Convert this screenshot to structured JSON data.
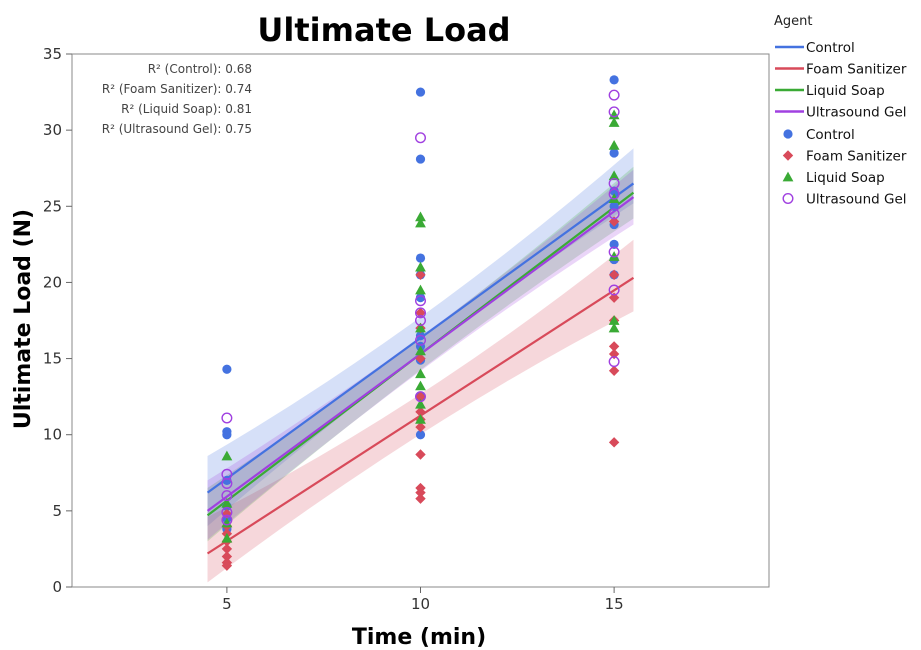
{
  "chart_data": {
    "type": "scatter",
    "title": "Ultimate Load",
    "xlabel": "Time (min)",
    "ylabel": "Ultimate Load (N)",
    "xlim": [
      1,
      19
    ],
    "ylim": [
      0,
      35
    ],
    "x_ticks": [
      5,
      10,
      15
    ],
    "y_ticks": [
      0,
      5,
      10,
      15,
      20,
      25,
      30,
      35
    ],
    "grid": false,
    "legend": {
      "title": "Agent",
      "placement": "right",
      "line_entries": [
        "Control",
        "Foam Sanitizer",
        "Liquid Soap",
        "Ultrasound Gel"
      ],
      "marker_entries": [
        "Control",
        "Foam Sanitizer",
        "Liquid Soap",
        "Ultrasound Gel"
      ]
    },
    "annotations": [
      {
        "label": "R² (Control):",
        "value": "0.68"
      },
      {
        "label": "R² (Foam Sanitizer):",
        "value": "0.74"
      },
      {
        "label": "R² (Liquid Soap):",
        "value": "0.81"
      },
      {
        "label": "R² (Ultrasound Gel):",
        "value": "0.75"
      }
    ],
    "series": [
      {
        "name": "Control",
        "color": "#4472e0",
        "marker": "circle",
        "fit": {
          "x": [
            4.5,
            15.5
          ],
          "y": [
            6.2,
            26.5
          ]
        },
        "band": {
          "lower": [
            4.0,
            25.2
          ],
          "upper": [
            8.6,
            28.8
          ]
        },
        "points": [
          {
            "x": 5,
            "y": 14.3
          },
          {
            "x": 5,
            "y": 10.2
          },
          {
            "x": 5,
            "y": 10.0
          },
          {
            "x": 5,
            "y": 7.0
          },
          {
            "x": 5,
            "y": 5.3
          },
          {
            "x": 5,
            "y": 4.5
          },
          {
            "x": 5,
            "y": 3.8
          },
          {
            "x": 10,
            "y": 32.5
          },
          {
            "x": 10,
            "y": 28.1
          },
          {
            "x": 10,
            "y": 21.6
          },
          {
            "x": 10,
            "y": 20.5
          },
          {
            "x": 10,
            "y": 19.0
          },
          {
            "x": 10,
            "y": 16.5
          },
          {
            "x": 10,
            "y": 15.8
          },
          {
            "x": 10,
            "y": 14.9
          },
          {
            "x": 10,
            "y": 10.0
          },
          {
            "x": 10,
            "y": 12.5
          },
          {
            "x": 15,
            "y": 33.3
          },
          {
            "x": 15,
            "y": 28.5
          },
          {
            "x": 15,
            "y": 26.0
          },
          {
            "x": 15,
            "y": 25.0
          },
          {
            "x": 15,
            "y": 23.8
          },
          {
            "x": 15,
            "y": 22.5
          },
          {
            "x": 15,
            "y": 21.5
          },
          {
            "x": 15,
            "y": 20.5
          }
        ]
      },
      {
        "name": "Foam Sanitizer",
        "color": "#d84a5a",
        "marker": "diamond",
        "fit": {
          "x": [
            4.5,
            15.5
          ],
          "y": [
            2.2,
            20.3
          ]
        },
        "band": {
          "lower": [
            0.3,
            18.1
          ],
          "upper": [
            4.6,
            22.8
          ]
        },
        "points": [
          {
            "x": 5,
            "y": 4.8
          },
          {
            "x": 5,
            "y": 4.0
          },
          {
            "x": 5,
            "y": 3.5
          },
          {
            "x": 5,
            "y": 3.0
          },
          {
            "x": 5,
            "y": 2.5
          },
          {
            "x": 5,
            "y": 2.0
          },
          {
            "x": 5,
            "y": 1.6
          },
          {
            "x": 5,
            "y": 1.4
          },
          {
            "x": 10,
            "y": 20.5
          },
          {
            "x": 10,
            "y": 18.0
          },
          {
            "x": 10,
            "y": 17.0
          },
          {
            "x": 10,
            "y": 15.0
          },
          {
            "x": 10,
            "y": 12.5
          },
          {
            "x": 10,
            "y": 11.5
          },
          {
            "x": 10,
            "y": 11.0
          },
          {
            "x": 10,
            "y": 10.5
          },
          {
            "x": 10,
            "y": 8.7
          },
          {
            "x": 10,
            "y": 6.5
          },
          {
            "x": 10,
            "y": 6.2
          },
          {
            "x": 10,
            "y": 5.8
          },
          {
            "x": 15,
            "y": 24.0
          },
          {
            "x": 15,
            "y": 20.5
          },
          {
            "x": 15,
            "y": 19.0
          },
          {
            "x": 15,
            "y": 17.5
          },
          {
            "x": 15,
            "y": 15.8
          },
          {
            "x": 15,
            "y": 15.3
          },
          {
            "x": 15,
            "y": 14.2
          },
          {
            "x": 15,
            "y": 9.5
          }
        ]
      },
      {
        "name": "Liquid Soap",
        "color": "#3aaa35",
        "marker": "triangle",
        "fit": {
          "x": [
            4.5,
            15.5
          ],
          "y": [
            4.7,
            25.9
          ]
        },
        "band": {
          "lower": [
            3.0,
            24.2
          ],
          "upper": [
            6.5,
            27.6
          ]
        },
        "points": [
          {
            "x": 5,
            "y": 8.6
          },
          {
            "x": 5,
            "y": 5.5
          },
          {
            "x": 5,
            "y": 4.2
          },
          {
            "x": 5,
            "y": 3.2
          },
          {
            "x": 10,
            "y": 24.3
          },
          {
            "x": 10,
            "y": 23.9
          },
          {
            "x": 10,
            "y": 21.0
          },
          {
            "x": 10,
            "y": 19.5
          },
          {
            "x": 10,
            "y": 17.0
          },
          {
            "x": 10,
            "y": 15.5
          },
          {
            "x": 10,
            "y": 14.0
          },
          {
            "x": 10,
            "y": 13.2
          },
          {
            "x": 10,
            "y": 12.0
          },
          {
            "x": 10,
            "y": 11.0
          },
          {
            "x": 15,
            "y": 31.0
          },
          {
            "x": 15,
            "y": 30.5
          },
          {
            "x": 15,
            "y": 29.0
          },
          {
            "x": 15,
            "y": 27.0
          },
          {
            "x": 15,
            "y": 25.5
          },
          {
            "x": 15,
            "y": 21.7
          },
          {
            "x": 15,
            "y": 17.5
          },
          {
            "x": 15,
            "y": 17.0
          }
        ]
      },
      {
        "name": "Ultrasound Gel",
        "color": "#a040e0",
        "marker": "open-circle",
        "fit": {
          "x": [
            4.5,
            15.5
          ],
          "y": [
            5.0,
            25.6
          ]
        },
        "band": {
          "lower": [
            3.1,
            23.8
          ],
          "upper": [
            7.0,
            27.4
          ]
        },
        "points": [
          {
            "x": 5,
            "y": 11.1
          },
          {
            "x": 5,
            "y": 7.4
          },
          {
            "x": 5,
            "y": 6.8
          },
          {
            "x": 5,
            "y": 6.0
          },
          {
            "x": 5,
            "y": 4.9
          },
          {
            "x": 5,
            "y": 4.4
          },
          {
            "x": 10,
            "y": 29.5
          },
          {
            "x": 10,
            "y": 18.8
          },
          {
            "x": 10,
            "y": 18.0
          },
          {
            "x": 10,
            "y": 17.5
          },
          {
            "x": 10,
            "y": 16.2
          },
          {
            "x": 10,
            "y": 12.5
          },
          {
            "x": 15,
            "y": 32.3
          },
          {
            "x": 15,
            "y": 31.2
          },
          {
            "x": 15,
            "y": 26.5
          },
          {
            "x": 15,
            "y": 25.8
          },
          {
            "x": 15,
            "y": 24.5
          },
          {
            "x": 15,
            "y": 22.0
          },
          {
            "x": 15,
            "y": 19.5
          },
          {
            "x": 15,
            "y": 14.8
          }
        ]
      }
    ]
  }
}
